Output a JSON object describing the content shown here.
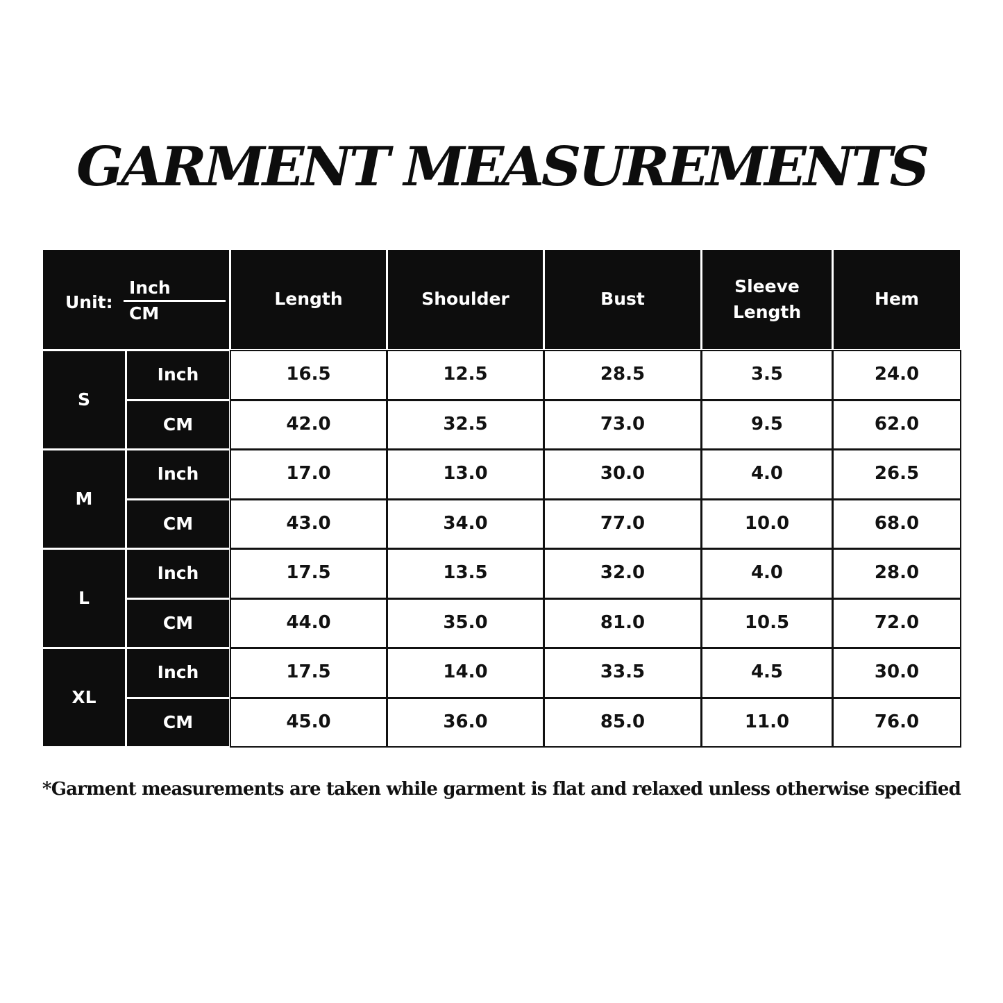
{
  "title": "GARMENT MEASUREMENTS",
  "table": {
    "unit_label": "Unit:",
    "unit_top": "Inch",
    "unit_bottom": "CM",
    "columns": [
      "Length",
      "Shoulder",
      "Bust",
      "Sleeve Length",
      "Hem"
    ],
    "sizes": [
      {
        "size": "S",
        "rows": [
          {
            "unit": "Inch",
            "values": [
              "16.5",
              "12.5",
              "28.5",
              "3.5",
              "24.0"
            ]
          },
          {
            "unit": "CM",
            "values": [
              "42.0",
              "32.5",
              "73.0",
              "9.5",
              "62.0"
            ]
          }
        ]
      },
      {
        "size": "M",
        "rows": [
          {
            "unit": "Inch",
            "values": [
              "17.0",
              "13.0",
              "30.0",
              "4.0",
              "26.5"
            ]
          },
          {
            "unit": "CM",
            "values": [
              "43.0",
              "34.0",
              "77.0",
              "10.0",
              "68.0"
            ]
          }
        ]
      },
      {
        "size": "L",
        "rows": [
          {
            "unit": "Inch",
            "values": [
              "17.5",
              "13.5",
              "32.0",
              "4.0",
              "28.0"
            ]
          },
          {
            "unit": "CM",
            "values": [
              "44.0",
              "35.0",
              "81.0",
              "10.5",
              "72.0"
            ]
          }
        ]
      },
      {
        "size": "XL",
        "rows": [
          {
            "unit": "Inch",
            "values": [
              "17.5",
              "14.0",
              "33.5",
              "4.5",
              "30.0"
            ]
          },
          {
            "unit": "CM",
            "values": [
              "45.0",
              "36.0",
              "85.0",
              "11.0",
              "76.0"
            ]
          }
        ]
      }
    ]
  },
  "footnote": "*Garment measurements are taken while garment is flat and relaxed unless otherwise specified"
}
